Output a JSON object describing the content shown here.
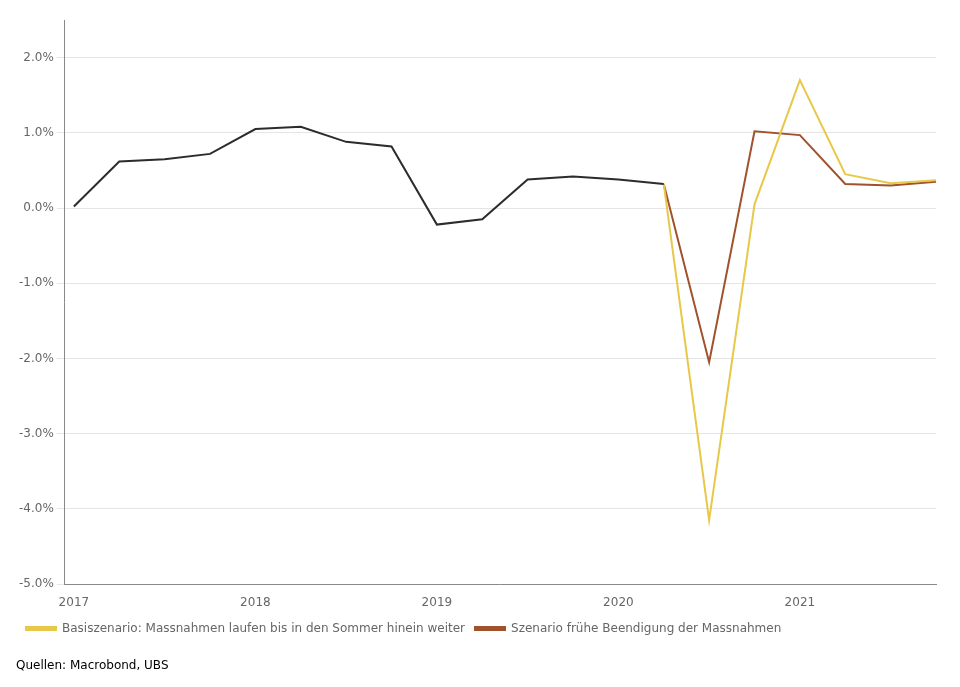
{
  "chart_data": {
    "type": "line",
    "annotations": [
      "Quellen: Macrobond, UBS"
    ],
    "series": [
      {
        "color": "#2C2C2C",
        "x": [
          2017.0,
          2017.25,
          2017.5,
          2017.75,
          2018.0,
          2018.25,
          2018.5,
          2018.75,
          2019.0,
          2019.25,
          2019.5,
          2019.75,
          2020.0,
          2020.25
        ],
        "values": [
          0.02,
          0.62,
          0.65,
          0.72,
          1.05,
          1.08,
          0.88,
          0.82,
          -0.22,
          -0.15,
          0.38,
          0.42,
          0.38,
          0.32
        ]
      },
      {
        "name": "Basiszenario: Massnahmen laufen bis in den Sommer hinein weiter",
        "color": "#E8C84A",
        "x": [
          2020.25,
          2020.5,
          2020.75,
          2021.0,
          2021.25,
          2021.5,
          2021.75
        ],
        "values": [
          0.32,
          -4.15,
          0.05,
          1.7,
          0.45,
          0.33,
          0.37
        ]
      },
      {
        "name": "Szenario frühe Beendigung der Massnahmen",
        "color": "#A0522D",
        "x": [
          2020.25,
          2020.5,
          2020.75,
          2021.0,
          2021.25,
          2021.5,
          2021.75
        ],
        "values": [
          0.32,
          -2.05,
          1.02,
          0.97,
          0.32,
          0.3,
          0.35
        ]
      }
    ],
    "xlim": [
      2016.95,
      2021.75
    ],
    "xticks": [
      2017,
      2018,
      2019,
      2020,
      2021
    ],
    "ylim": [
      -5.0,
      2.5
    ],
    "yticks": [
      {
        "value": -5.0,
        "label": "-5.0%"
      },
      {
        "value": -4.0,
        "label": "-4.0%"
      },
      {
        "value": -3.0,
        "label": "-3.0%"
      },
      {
        "value": -2.0,
        "label": "-2.0%"
      },
      {
        "value": -1.0,
        "label": "-1.0%"
      },
      {
        "value": 0.0,
        "label": "0.0%"
      },
      {
        "value": 1.0,
        "label": "1.0%"
      },
      {
        "value": 2.0,
        "label": "2.0%"
      }
    ],
    "grid": "y",
    "legend": "bottom"
  }
}
